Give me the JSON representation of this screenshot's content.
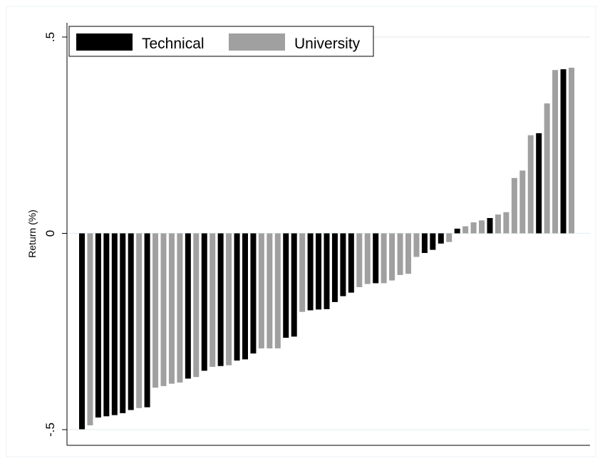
{
  "chart_data": {
    "type": "bar",
    "ylabel": "Return (%)",
    "xlabel": "",
    "ylim": [
      -0.5,
      0.5
    ],
    "y_ticks": [
      -0.5,
      0,
      0.5
    ],
    "y_tick_labels": [
      "-.5",
      "0",
      ".5"
    ],
    "grid": "horizontal",
    "legend_position": "top-left",
    "series": [
      {
        "name": "Technical",
        "color": "#000000"
      },
      {
        "name": "University",
        "color": "#a0a0a0"
      }
    ],
    "bars": [
      {
        "series": "Technical",
        "value": -0.499
      },
      {
        "series": "University",
        "value": -0.489
      },
      {
        "series": "Technical",
        "value": -0.469
      },
      {
        "series": "Technical",
        "value": -0.466
      },
      {
        "series": "Technical",
        "value": -0.463
      },
      {
        "series": "Technical",
        "value": -0.458
      },
      {
        "series": "Technical",
        "value": -0.45
      },
      {
        "series": "University",
        "value": -0.445
      },
      {
        "series": "Technical",
        "value": -0.443
      },
      {
        "series": "University",
        "value": -0.393
      },
      {
        "series": "University",
        "value": -0.389
      },
      {
        "series": "University",
        "value": -0.383
      },
      {
        "series": "University",
        "value": -0.38
      },
      {
        "series": "Technical",
        "value": -0.37
      },
      {
        "series": "University",
        "value": -0.366
      },
      {
        "series": "Technical",
        "value": -0.35
      },
      {
        "series": "University",
        "value": -0.34
      },
      {
        "series": "Technical",
        "value": -0.338
      },
      {
        "series": "University",
        "value": -0.336
      },
      {
        "series": "Technical",
        "value": -0.324
      },
      {
        "series": "Technical",
        "value": -0.321
      },
      {
        "series": "Technical",
        "value": -0.306
      },
      {
        "series": "University",
        "value": -0.293
      },
      {
        "series": "University",
        "value": -0.293
      },
      {
        "series": "University",
        "value": -0.293
      },
      {
        "series": "Technical",
        "value": -0.266
      },
      {
        "series": "Technical",
        "value": -0.263
      },
      {
        "series": "University",
        "value": -0.2
      },
      {
        "series": "Technical",
        "value": -0.196
      },
      {
        "series": "Technical",
        "value": -0.194
      },
      {
        "series": "Technical",
        "value": -0.193
      },
      {
        "series": "Technical",
        "value": -0.175
      },
      {
        "series": "Technical",
        "value": -0.16
      },
      {
        "series": "Technical",
        "value": -0.151
      },
      {
        "series": "University",
        "value": -0.137
      },
      {
        "series": "University",
        "value": -0.129
      },
      {
        "series": "Technical",
        "value": -0.127
      },
      {
        "series": "University",
        "value": -0.127
      },
      {
        "series": "University",
        "value": -0.12
      },
      {
        "series": "University",
        "value": -0.106
      },
      {
        "series": "University",
        "value": -0.103
      },
      {
        "series": "University",
        "value": -0.06
      },
      {
        "series": "Technical",
        "value": -0.05
      },
      {
        "series": "Technical",
        "value": -0.042
      },
      {
        "series": "Technical",
        "value": -0.026
      },
      {
        "series": "University",
        "value": -0.022
      },
      {
        "series": "Technical",
        "value": 0.012
      },
      {
        "series": "University",
        "value": 0.018
      },
      {
        "series": "University",
        "value": 0.028
      },
      {
        "series": "University",
        "value": 0.033
      },
      {
        "series": "Technical",
        "value": 0.039
      },
      {
        "series": "University",
        "value": 0.048
      },
      {
        "series": "University",
        "value": 0.054
      },
      {
        "series": "University",
        "value": 0.141
      },
      {
        "series": "University",
        "value": 0.16
      },
      {
        "series": "University",
        "value": 0.25
      },
      {
        "series": "Technical",
        "value": 0.255
      },
      {
        "series": "University",
        "value": 0.331
      },
      {
        "series": "University",
        "value": 0.416
      },
      {
        "series": "Technical",
        "value": 0.418
      },
      {
        "series": "University",
        "value": 0.422
      }
    ]
  }
}
